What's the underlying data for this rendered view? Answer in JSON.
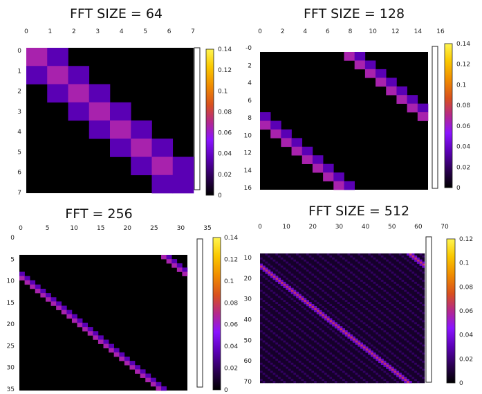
{
  "chart_data": [
    {
      "type": "heatmap",
      "title": "FFT SIZE = 64",
      "pattern": "band",
      "size": 8,
      "xlim": [
        0,
        7
      ],
      "ylim": [
        0,
        7
      ],
      "xticks": [
        "0",
        "1",
        "2",
        "3",
        "4",
        "5",
        "6",
        "7"
      ],
      "yticks": [
        "0",
        "1",
        "2",
        "3",
        "4",
        "5",
        "6",
        "7"
      ],
      "band_width": 2,
      "cells": [
        {
          "row": 0,
          "col": 0,
          "value": 0.065
        },
        {
          "row": 0,
          "col": 1,
          "value": 0.035
        },
        {
          "row": 1,
          "col": 0,
          "value": 0.035
        },
        {
          "row": 1,
          "col": 1,
          "value": 0.065
        },
        {
          "row": 1,
          "col": 2,
          "value": 0.035
        },
        {
          "row": 2,
          "col": 1,
          "value": 0.035
        },
        {
          "row": 2,
          "col": 2,
          "value": 0.065
        },
        {
          "row": 2,
          "col": 3,
          "value": 0.035
        },
        {
          "row": 3,
          "col": 2,
          "value": 0.035
        },
        {
          "row": 3,
          "col": 3,
          "value": 0.065
        },
        {
          "row": 3,
          "col": 4,
          "value": 0.035
        },
        {
          "row": 4,
          "col": 3,
          "value": 0.035
        },
        {
          "row": 4,
          "col": 4,
          "value": 0.065
        },
        {
          "row": 4,
          "col": 5,
          "value": 0.035
        },
        {
          "row": 5,
          "col": 4,
          "value": 0.035
        },
        {
          "row": 5,
          "col": 5,
          "value": 0.065
        },
        {
          "row": 5,
          "col": 6,
          "value": 0.035
        },
        {
          "row": 6,
          "col": 5,
          "value": 0.035
        },
        {
          "row": 6,
          "col": 6,
          "value": 0.065
        },
        {
          "row": 6,
          "col": 7,
          "value": 0.035
        },
        {
          "row": 7,
          "col": 6,
          "value": 0.035
        },
        {
          "row": 7,
          "col": 7,
          "value": 0.035
        }
      ],
      "colorbar": {
        "min": 0,
        "max": 0.14,
        "ticks": [
          "0.14",
          "0.12",
          "0.1",
          "0.08",
          "0.06",
          "0.04",
          "0.02",
          "0"
        ]
      }
    },
    {
      "type": "heatmap",
      "title": "FFT SIZE = 128",
      "pattern": "shifted-band",
      "size": 16,
      "xlim": [
        0,
        16
      ],
      "ylim": [
        0,
        16
      ],
      "xticks": [
        "0",
        "2",
        "4",
        "6",
        "8",
        "10",
        "12",
        "14",
        "16"
      ],
      "yticks": [
        "-0",
        "2",
        "4",
        "6",
        "8",
        "10",
        "12",
        "14",
        "16"
      ],
      "offset": 8,
      "band_width": 2,
      "center_value": 0.065,
      "side_value": 0.035,
      "colorbar": {
        "min": 0,
        "max": 0.14,
        "ticks": [
          "0.14",
          "0.12",
          "0.1",
          "0.08",
          "0.06",
          "0.04",
          "0.02",
          "0"
        ]
      }
    },
    {
      "type": "heatmap",
      "title": "FFT = 256",
      "pattern": "shifted-band",
      "size": 32,
      "xlim": [
        0,
        35
      ],
      "ylim": [
        0,
        35
      ],
      "xticks": [
        "0",
        "5",
        "10",
        "15",
        "20",
        "25",
        "30",
        "35"
      ],
      "yticks": [
        "0",
        "5",
        "10",
        "15",
        "20",
        "25",
        "30",
        "35"
      ],
      "offset": 27,
      "band_width": 2,
      "center_value": 0.065,
      "side_value": 0.035,
      "colorbar": {
        "min": 0,
        "max": 0.14,
        "ticks": [
          "0.14",
          "0.12",
          "0.1",
          "0.08",
          "0.06",
          "0.04",
          "0.02",
          "0"
        ]
      }
    },
    {
      "type": "heatmap",
      "title": "FFT SIZE = 512",
      "pattern": "shifted-band-diffuse",
      "size": 64,
      "xlim": [
        0,
        70
      ],
      "ylim": [
        0,
        70
      ],
      "xticks": [
        "0",
        "10",
        "20",
        "30",
        "40",
        "50",
        "60",
        "70"
      ],
      "yticks": [
        "10",
        "20",
        "30",
        "40",
        "50",
        "60",
        "70"
      ],
      "offset": 58,
      "band_width": 2,
      "center_value": 0.065,
      "side_value": 0.035,
      "background_value": 0.008,
      "colorbar": {
        "min": 0,
        "max": 0.12,
        "ticks": [
          "0.12",
          "0.1",
          "0.08",
          "0.06",
          "0.04",
          "0.02",
          "0"
        ]
      }
    }
  ],
  "colormap": [
    "#000000",
    "#2a0050",
    "#5a00b4",
    "#8a14ff",
    "#b4288c",
    "#d8501e",
    "#f08c00",
    "#fac800",
    "#fff550"
  ]
}
